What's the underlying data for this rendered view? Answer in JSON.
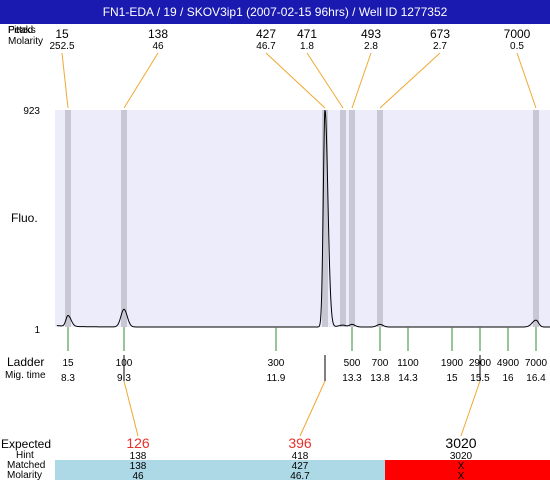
{
  "title": "FN1-EDA / 19 / SKOV3ip1 (2007-02-15 96hrs) / Well ID 1277352",
  "row_labels": {
    "peaks_overlap_a": "Fitted",
    "peaks_overlap_b": "Peaks",
    "molarity": "Molarity",
    "fluo": "Fluo.",
    "ladder": "Ladder",
    "mig_time": "Mig. time",
    "expected": "Expected",
    "hint": "Hint",
    "matched": "Matched",
    "molarity_bottom": "Molarity"
  },
  "colors": {
    "title_bar": "#1a1ab0",
    "plot_bg": "#ececfb",
    "band": "#c8c8d4",
    "connector": "#f0a830",
    "ladder_tick": "#2e8b2e",
    "expected_value": "#e8302a",
    "match_ok": "#add8e6",
    "match_fail": "#ff0000"
  },
  "chart_data": {
    "type": "line",
    "ylabel": "Fluo.",
    "ylim": [
      1,
      923
    ],
    "ytick_labels": [
      "923",
      "1"
    ],
    "x_axis": "migration time (s)",
    "xlim": [
      7.95,
      16.7
    ],
    "trace": {
      "baseline": 1,
      "peaks": [
        {
          "x": 8.3,
          "height": 47
        },
        {
          "x": 9.3,
          "height": 76
        },
        {
          "x": 12.9,
          "height": 923
        },
        {
          "x": 13.12,
          "height": 9
        },
        {
          "x": 13.3,
          "height": 12
        },
        {
          "x": 13.8,
          "height": 12
        },
        {
          "x": 16.4,
          "height": 30
        }
      ]
    },
    "fitted_peaks": [
      {
        "size": "15",
        "molarity": "252.5",
        "x": 8.3
      },
      {
        "size": "138",
        "molarity": "46",
        "x": 9.3
      },
      {
        "size": "427",
        "molarity": "46.7",
        "x": 12.9
      },
      {
        "size": "471",
        "molarity": "1.8",
        "x": 13.12
      },
      {
        "size": "493",
        "molarity": "2.8",
        "x": 13.3
      },
      {
        "size": "673",
        "molarity": "2.7",
        "x": 13.8
      },
      {
        "size": "7000",
        "molarity": "0.5",
        "x": 16.4
      }
    ],
    "ladder": [
      {
        "size": "15",
        "time": "8.3"
      },
      {
        "size": "100",
        "time": "9.3"
      },
      {
        "size": "300",
        "time": "11.9"
      },
      {
        "size": "500",
        "time": "13.3"
      },
      {
        "size": "700",
        "time": "13.8"
      },
      {
        "size": "1100",
        "time": "14.3"
      },
      {
        "size": "1900",
        "time": "15"
      },
      {
        "size": "2900",
        "time": "15.5"
      },
      {
        "size": "4900",
        "time": "16"
      },
      {
        "size": "7000",
        "time": "16.4"
      }
    ],
    "expected": [
      {
        "expected": "126",
        "hint": "138",
        "matched": "138",
        "molarity": "46",
        "x": 9.3,
        "status": "ok"
      },
      {
        "expected": "396",
        "hint": "418",
        "matched": "427",
        "molarity": "46.7",
        "x": 12.9,
        "status": "ok"
      },
      {
        "expected": "3020",
        "hint": "3020",
        "matched": "X",
        "molarity": "X",
        "x": 15.5,
        "status": "fail"
      }
    ]
  }
}
